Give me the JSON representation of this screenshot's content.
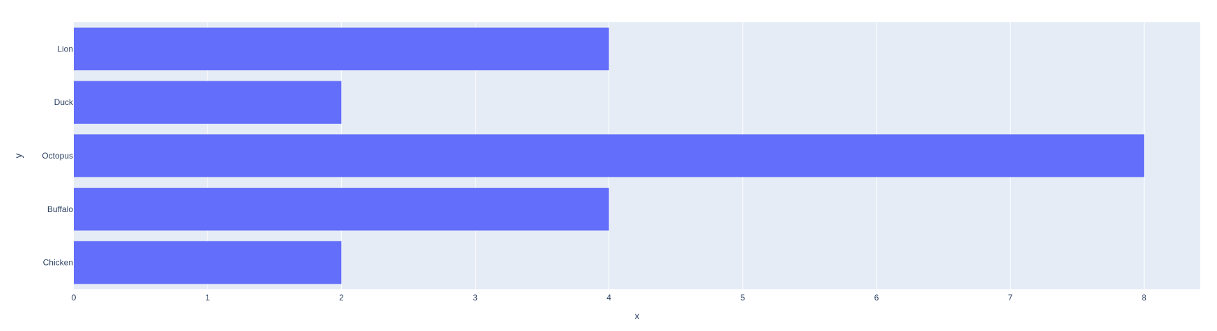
{
  "chart_data": {
    "type": "bar",
    "orientation": "horizontal",
    "categories": [
      "Chicken",
      "Buffalo",
      "Octopus",
      "Duck",
      "Lion"
    ],
    "values": [
      2,
      4,
      8,
      2,
      4
    ],
    "xlabel": "x",
    "ylabel": "y",
    "xlim": [
      0,
      8.42
    ],
    "xticks": [
      0,
      1,
      2,
      3,
      4,
      5,
      6,
      7,
      8
    ],
    "grid": true,
    "colors": {
      "bar": "#636efa",
      "plot_bg": "#e5ecf6",
      "grid": "#ffffff",
      "text": "#2a3f5f"
    }
  }
}
